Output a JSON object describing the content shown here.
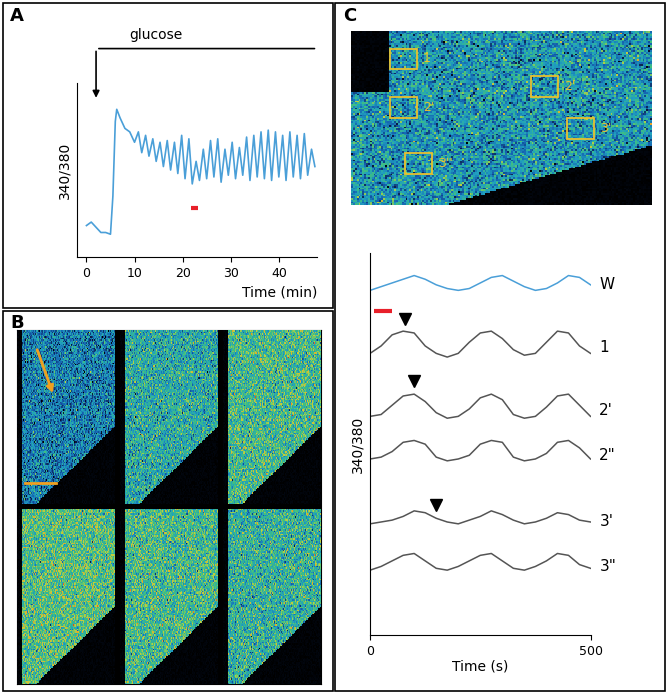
{
  "panel_labels": [
    "A",
    "B",
    "C"
  ],
  "roi_labels": [
    "1",
    "2'",
    "2'",
    "3'",
    "3''"
  ],
  "chart_data": [
    {
      "type": "line",
      "xlabel": "Time (min)",
      "ylabel": "340/380",
      "color": "#4a9fd8",
      "x": [
        0,
        1,
        2,
        3,
        4,
        5,
        5.5,
        6,
        6.3,
        7,
        8,
        9,
        10,
        10.8,
        11.5,
        12.3,
        13,
        13.8,
        14.5,
        15.3,
        16,
        16.8,
        17.5,
        18.3,
        19,
        19.8,
        20.5,
        21.3,
        22,
        22.8,
        23.5,
        24.3,
        25,
        25.8,
        26.5,
        27.3,
        28,
        28.8,
        29.5,
        30.3,
        31,
        31.8,
        32.5,
        33.3,
        34,
        34.8,
        35.5,
        36.3,
        37,
        37.8,
        38.5,
        39.3,
        40,
        40.8,
        41.5,
        42.3,
        43,
        43.8,
        44.5,
        45.3,
        46,
        46.8,
        47.5
      ],
      "values": [
        0.18,
        0.2,
        0.17,
        0.14,
        0.14,
        0.13,
        0.35,
        0.78,
        0.85,
        0.8,
        0.74,
        0.72,
        0.66,
        0.72,
        0.6,
        0.7,
        0.58,
        0.68,
        0.55,
        0.66,
        0.52,
        0.67,
        0.5,
        0.66,
        0.48,
        0.7,
        0.45,
        0.68,
        0.42,
        0.55,
        0.44,
        0.62,
        0.45,
        0.67,
        0.46,
        0.68,
        0.43,
        0.62,
        0.47,
        0.66,
        0.45,
        0.63,
        0.47,
        0.69,
        0.44,
        0.7,
        0.46,
        0.72,
        0.45,
        0.73,
        0.44,
        0.72,
        0.46,
        0.7,
        0.44,
        0.72,
        0.46,
        0.7,
        0.45,
        0.71,
        0.47,
        0.62,
        0.52
      ],
      "xlim": [
        -2,
        48
      ],
      "xticks": [
        0,
        10,
        20,
        30,
        40
      ],
      "ylim": [
        0,
        1
      ],
      "tick_labels": "x",
      "annotation": {
        "text": "glucose",
        "x": 2
      },
      "time_bar": {
        "x": [
          21.8,
          23.2
        ],
        "y": 0.28,
        "color": "#e8202a"
      }
    },
    {
      "type": "line",
      "xlabel": "Time (s)",
      "ylabel": "340/380",
      "x": [
        0,
        25,
        50,
        75,
        100,
        125,
        150,
        175,
        200,
        225,
        250,
        275,
        300,
        325,
        350,
        375,
        400,
        425,
        450,
        475,
        500
      ],
      "xlim": [
        0,
        500
      ],
      "xticks": [
        0,
        500
      ],
      "tick_labels": "x",
      "time_bar": {
        "x": [
          10,
          50
        ],
        "color": "#e8202a"
      },
      "series": [
        {
          "name": "W",
          "color": "#4a9fd8",
          "values": [
            0.3,
            0.4,
            0.5,
            0.6,
            0.7,
            0.6,
            0.45,
            0.35,
            0.3,
            0.35,
            0.5,
            0.65,
            0.7,
            0.55,
            0.4,
            0.3,
            0.35,
            0.5,
            0.7,
            0.65,
            0.45
          ]
        },
        {
          "name": "1",
          "color": "#555555",
          "arrow_at": 80,
          "values": [
            0.3,
            0.5,
            0.8,
            0.9,
            0.85,
            0.5,
            0.3,
            0.2,
            0.3,
            0.6,
            0.85,
            0.9,
            0.7,
            0.4,
            0.25,
            0.3,
            0.6,
            0.9,
            0.85,
            0.5,
            0.3
          ]
        },
        {
          "name": "2'",
          "color": "#555555",
          "arrow_at": 100,
          "values": [
            0.3,
            0.35,
            0.6,
            0.85,
            0.9,
            0.7,
            0.4,
            0.25,
            0.3,
            0.5,
            0.8,
            0.9,
            0.75,
            0.35,
            0.25,
            0.3,
            0.55,
            0.85,
            0.9,
            0.6,
            0.3
          ]
        },
        {
          "name": "2\"",
          "color": "#555555",
          "values": [
            0.35,
            0.4,
            0.55,
            0.8,
            0.85,
            0.75,
            0.4,
            0.3,
            0.35,
            0.45,
            0.75,
            0.85,
            0.8,
            0.4,
            0.3,
            0.35,
            0.5,
            0.8,
            0.85,
            0.65,
            0.35
          ]
        },
        {
          "name": "3'",
          "color": "#555555",
          "arrow_at": 150,
          "values": [
            0.4,
            0.45,
            0.5,
            0.6,
            0.75,
            0.7,
            0.55,
            0.45,
            0.4,
            0.5,
            0.6,
            0.75,
            0.65,
            0.5,
            0.4,
            0.45,
            0.55,
            0.7,
            0.65,
            0.5,
            0.45
          ]
        },
        {
          "name": "3\"",
          "color": "#555555",
          "values": [
            0.35,
            0.45,
            0.6,
            0.75,
            0.8,
            0.6,
            0.4,
            0.35,
            0.45,
            0.6,
            0.75,
            0.8,
            0.6,
            0.4,
            0.35,
            0.45,
            0.6,
            0.8,
            0.75,
            0.5,
            0.4
          ]
        }
      ]
    }
  ]
}
